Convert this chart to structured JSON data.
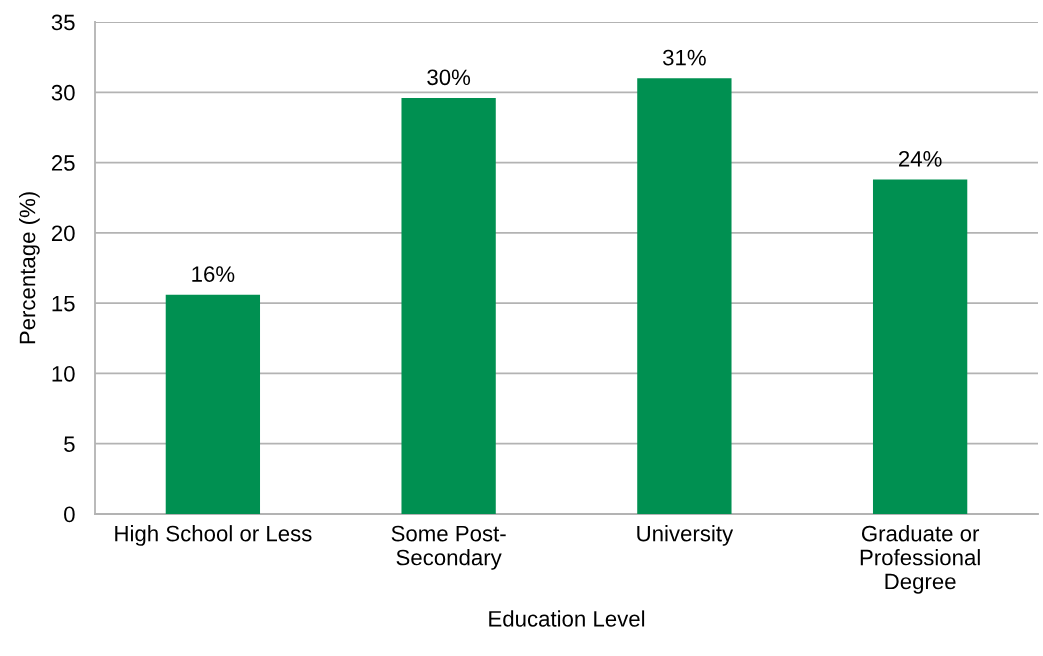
{
  "chart_data": {
    "type": "bar",
    "xlabel": "Education Level",
    "ylabel": "Percentage (%)",
    "categories": [
      "High School or Less",
      "Some Post-\nSecondary",
      "University",
      "Graduate or\nProfessional\nDegree"
    ],
    "values": [
      15.6,
      29.6,
      31.0,
      23.8
    ],
    "value_labels": [
      "16%",
      "30%",
      "31%",
      "24%"
    ],
    "color": "#009051",
    "ylim": [
      0,
      35
    ],
    "yticks": [
      0,
      5,
      10,
      15,
      20,
      25,
      30,
      35
    ],
    "grid": "y"
  }
}
